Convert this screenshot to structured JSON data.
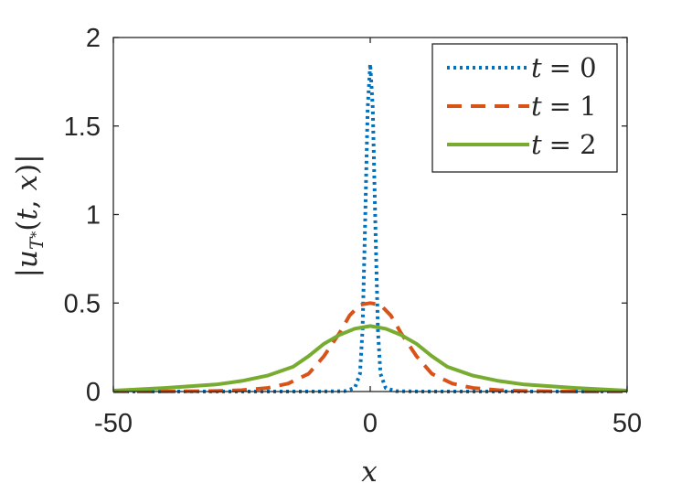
{
  "chart_data": {
    "type": "line",
    "xlabel": "x",
    "ylabel": "|u_{T*}(t, x)|",
    "xlim": [
      -50,
      50
    ],
    "ylim": [
      0,
      2
    ],
    "xticks": [
      -50,
      0,
      50
    ],
    "xtick_labels": [
      "-50",
      "0",
      "50"
    ],
    "yticks": [
      0,
      0.5,
      1,
      1.5,
      2
    ],
    "ytick_labels": [
      "0",
      "0.5",
      "1",
      "1.5",
      "2"
    ],
    "grid": false,
    "legend_position": "top-right",
    "series": [
      {
        "name": "t = 0",
        "legend_var": "t",
        "legend_eq": "= 0",
        "color": "#0072BD",
        "style": "dotted",
        "x": [
          -50,
          -10,
          -5,
          -3,
          -2,
          -1.5,
          -1,
          -0.5,
          0,
          0.5,
          1,
          1.5,
          2,
          3,
          5,
          10,
          50
        ],
        "y": [
          0,
          0,
          0.002,
          0.02,
          0.1,
          0.35,
          0.95,
          1.6,
          1.85,
          1.6,
          0.95,
          0.35,
          0.1,
          0.02,
          0.002,
          0,
          0
        ]
      },
      {
        "name": "t = 1",
        "legend_var": "t",
        "legend_eq": "= 1",
        "color": "#D95319",
        "style": "dashed",
        "x": [
          -50,
          -40,
          -30,
          -25,
          -20,
          -16,
          -12,
          -9,
          -6,
          -4,
          -2,
          0,
          2,
          4,
          6,
          9,
          12,
          16,
          20,
          25,
          30,
          40,
          50
        ],
        "y": [
          0,
          0,
          0.003,
          0.008,
          0.02,
          0.045,
          0.1,
          0.2,
          0.33,
          0.43,
          0.49,
          0.5,
          0.49,
          0.43,
          0.33,
          0.2,
          0.1,
          0.045,
          0.02,
          0.008,
          0.003,
          0,
          0
        ]
      },
      {
        "name": "t = 2",
        "legend_var": "t",
        "legend_eq": "= 2",
        "color": "#77AC30",
        "style": "solid",
        "x": [
          -50,
          -40,
          -30,
          -25,
          -20,
          -15,
          -12,
          -9,
          -6,
          -3,
          0,
          3,
          6,
          9,
          12,
          15,
          20,
          25,
          30,
          40,
          50
        ],
        "y": [
          0.005,
          0.02,
          0.04,
          0.06,
          0.09,
          0.14,
          0.2,
          0.27,
          0.32,
          0.355,
          0.37,
          0.355,
          0.32,
          0.27,
          0.2,
          0.14,
          0.09,
          0.06,
          0.04,
          0.02,
          0.005
        ]
      }
    ]
  }
}
